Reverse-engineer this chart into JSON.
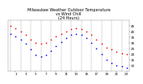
{
  "title": "Milwaukee Weather Outdoor Temperature\nvs Wind Chill\n(24 Hours)",
  "title_fontsize": 3.5,
  "bg_color": "#ffffff",
  "grid_color": "#888888",
  "hours": [
    0,
    1,
    2,
    3,
    4,
    5,
    6,
    7,
    8,
    9,
    10,
    11,
    12,
    13,
    14,
    15,
    16,
    17,
    18,
    19,
    20,
    21,
    22,
    23
  ],
  "temp": [
    45,
    43,
    40,
    37,
    33,
    30,
    29,
    30,
    33,
    36,
    38,
    40,
    42,
    43,
    42,
    40,
    37,
    33,
    29,
    26,
    24,
    22,
    21,
    20
  ],
  "wind_chill": [
    38,
    36,
    33,
    29,
    24,
    19,
    18,
    19,
    23,
    27,
    31,
    34,
    37,
    38,
    37,
    34,
    30,
    25,
    20,
    15,
    12,
    10,
    9,
    8
  ],
  "temp_color": "#ff0000",
  "wc_color": "#0000ff",
  "dot_size": 1.5,
  "ylim": [
    5,
    50
  ],
  "yticks": [
    10,
    15,
    20,
    25,
    30,
    35,
    40,
    45
  ],
  "xticks": [
    1,
    3,
    5,
    7,
    9,
    11,
    13,
    15,
    17,
    19,
    21,
    23
  ],
  "ylabel_fontsize": 3.0,
  "xlabel_fontsize": 3.0
}
